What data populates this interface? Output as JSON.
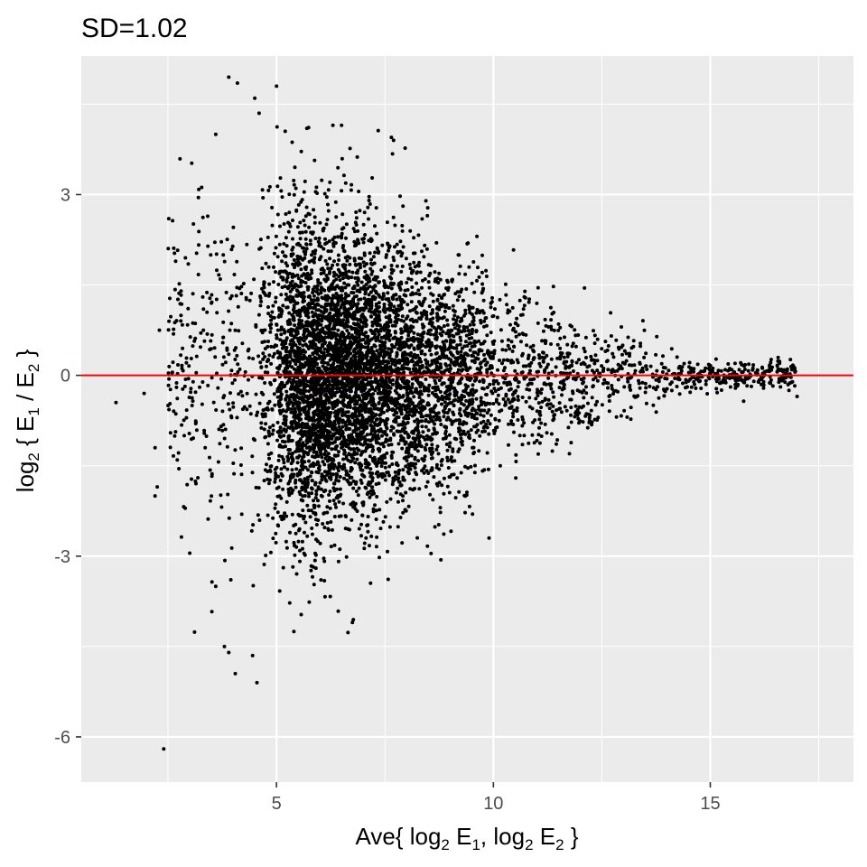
{
  "chart_data": {
    "type": "scatter",
    "title": "SD=1.02",
    "xlabel": {
      "parts": [
        "Ave{ log",
        "2",
        " E",
        "1",
        ", log",
        "2",
        " E",
        "2",
        " }"
      ]
    },
    "ylabel": {
      "parts": [
        "log",
        "2",
        " { E",
        "1",
        " / E",
        "2",
        " }"
      ]
    },
    "xlim": [
      0.5,
      18.3
    ],
    "ylim": [
      -6.75,
      5.3
    ],
    "x_ticks": [
      5,
      10,
      15
    ],
    "x_tick_labels": [
      "5",
      "10",
      "15"
    ],
    "y_ticks": [
      3,
      0,
      -3,
      -6
    ],
    "y_tick_labels": [
      "3",
      "0",
      "-3",
      "-6"
    ],
    "grid": true,
    "panel_background": "#ebebeb",
    "grid_color": "#ffffff",
    "point_color": "#000000",
    "hline": {
      "y": 0,
      "color": "#ff0000"
    },
    "point_count_estimate": 15000,
    "outlier_points": [
      {
        "x": 1.3,
        "y": -0.45
      },
      {
        "x": 1.95,
        "y": -0.3
      },
      {
        "x": 2.2,
        "y": -1.2
      },
      {
        "x": 2.25,
        "y": -1.85
      },
      {
        "x": 2.2,
        "y": -2.0
      },
      {
        "x": 2.4,
        "y": -6.2
      },
      {
        "x": 2.3,
        "y": 0.75
      },
      {
        "x": 2.5,
        "y": -0.5
      },
      {
        "x": 2.6,
        "y": 0.05
      },
      {
        "x": 2.75,
        "y": -1.55
      },
      {
        "x": 2.8,
        "y": 1.4
      },
      {
        "x": 2.9,
        "y": 1.95
      },
      {
        "x": 3.2,
        "y": 2.95
      },
      {
        "x": 3.3,
        "y": 1.3
      },
      {
        "x": 3.5,
        "y": 1.2
      },
      {
        "x": 3.6,
        "y": -3.5
      },
      {
        "x": 3.8,
        "y": -4.5
      },
      {
        "x": 3.9,
        "y": -4.6
      },
      {
        "x": 3.9,
        "y": 4.95
      },
      {
        "x": 4.1,
        "y": 4.85
      },
      {
        "x": 3.6,
        "y": 4.0
      },
      {
        "x": 4.05,
        "y": -4.95
      },
      {
        "x": 4.45,
        "y": -4.65
      },
      {
        "x": 4.55,
        "y": -5.1
      },
      {
        "x": 4.5,
        "y": 4.6
      },
      {
        "x": 4.6,
        "y": 4.35
      },
      {
        "x": 5.0,
        "y": 4.8
      },
      {
        "x": 5.2,
        "y": 4.05
      },
      {
        "x": 5.7,
        "y": 4.1
      },
      {
        "x": 6.3,
        "y": 4.15
      },
      {
        "x": 6.5,
        "y": 4.15
      },
      {
        "x": 7.65,
        "y": 3.95
      },
      {
        "x": 7.7,
        "y": 3.9
      },
      {
        "x": 9.9,
        "y": -2.7
      },
      {
        "x": 12.1,
        "y": 1.45
      },
      {
        "x": 16.7,
        "y": 0.0
      },
      {
        "x": 17.0,
        "y": -0.35
      },
      {
        "x": 16.2,
        "y": -0.15
      },
      {
        "x": 15.8,
        "y": 0.1
      },
      {
        "x": 6.75,
        "y": -4.1
      },
      {
        "x": 5.4,
        "y": -4.25
      },
      {
        "x": 3.0,
        "y": -2.95
      }
    ]
  }
}
